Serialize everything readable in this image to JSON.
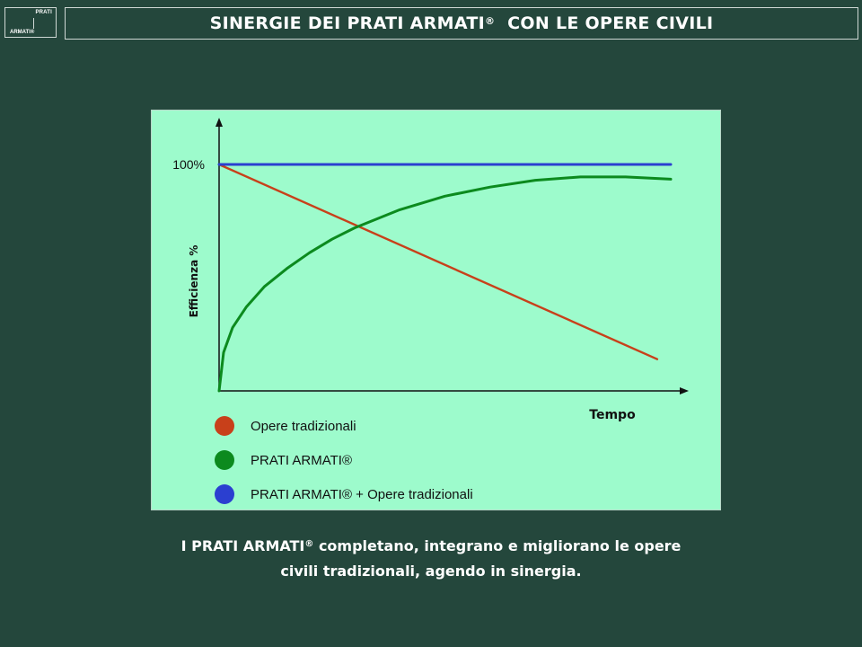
{
  "logo": {
    "top_text": "PRATI",
    "bottom_text": "ARMATI®"
  },
  "header": {
    "title": "SINERGIE DEI PRATI ARMATI",
    "title_mark": "®",
    "title_rest": "  CON LE OPERE CIVILI"
  },
  "chart_data": {
    "type": "line",
    "title": "",
    "xlabel": "Tempo",
    "ylabel": "Efficienza %",
    "y_tick_labels": [
      "100%"
    ],
    "ylim": [
      0,
      100
    ],
    "xlim": [
      0,
      100
    ],
    "grid": false,
    "legend_placement": "bottom-left",
    "series": [
      {
        "name": "Opere tradizionali",
        "color": "#c8401a",
        "x": [
          0,
          97
        ],
        "y": [
          100,
          14
        ]
      },
      {
        "name": "PRATI ARMATI®",
        "color": "#0c8a1e",
        "x": [
          0,
          1,
          3,
          6,
          10,
          15,
          20,
          25,
          30,
          40,
          50,
          60,
          70,
          80,
          90,
          100
        ],
        "y": [
          0,
          17,
          28,
          37,
          46,
          54,
          61,
          67,
          72,
          80,
          86,
          90,
          93,
          94.5,
          94.5,
          93.5
        ]
      },
      {
        "name": "PRATI ARMATI® + Opere tradizionali",
        "color": "#2b3fd0",
        "x": [
          0,
          100
        ],
        "y": [
          100,
          100
        ]
      }
    ]
  },
  "caption": {
    "line1_a": "I PRATI ARMATI",
    "line1_mark": "®",
    "line1_b": " completano, integrano e migliorano le opere",
    "line2": "civili tradizionali, agendo in sinergia."
  }
}
